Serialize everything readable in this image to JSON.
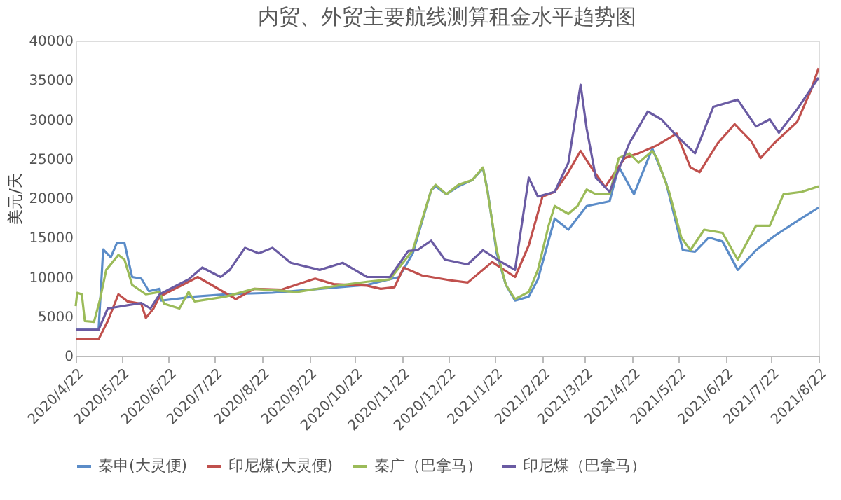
{
  "chart_data": {
    "type": "line",
    "title": "内贸、外贸主要航线测算租金水平趋势图",
    "ylabel": "美元/天",
    "xlim": [
      "2020-04-22",
      "2021-08-22"
    ],
    "xticks": [
      {
        "value": "2020-04-22",
        "label": "2020/4/22"
      },
      {
        "value": "2020-05-22",
        "label": "2020/5/22"
      },
      {
        "value": "2020-06-22",
        "label": "2020/6/22"
      },
      {
        "value": "2020-07-22",
        "label": "2020/7/22"
      },
      {
        "value": "2020-08-22",
        "label": "2020/8/22"
      },
      {
        "value": "2020-09-22",
        "label": "2020/9/22"
      },
      {
        "value": "2020-10-22",
        "label": "2020/10/22"
      },
      {
        "value": "2020-11-22",
        "label": "2020/11/22"
      },
      {
        "value": "2020-12-22",
        "label": "2020/12/22"
      },
      {
        "value": "2021-01-22",
        "label": "2021/1/22"
      },
      {
        "value": "2021-02-22",
        "label": "2021/2/22"
      },
      {
        "value": "2021-03-22",
        "label": "2021/3/22"
      },
      {
        "value": "2021-04-22",
        "label": "2021/4/22"
      },
      {
        "value": "2021-05-22",
        "label": "2021/5/22"
      },
      {
        "value": "2021-06-22",
        "label": "2021/6/22"
      },
      {
        "value": "2021-07-22",
        "label": "2021/7/22"
      },
      {
        "value": "2021-08-22",
        "label": "2021/8/22"
      }
    ],
    "ylim": [
      0,
      40000
    ],
    "yticks": [
      0,
      5000,
      10000,
      15000,
      20000,
      25000,
      30000,
      35000,
      40000
    ],
    "grid": false,
    "legend": "bottom",
    "marker": "none",
    "line_style": "solid",
    "series": [
      {
        "name": "秦申(大灵便)",
        "color": "#5b8cc8",
        "x": [
          "2020-04-22",
          "2020-05-07",
          "2020-05-10",
          "2020-05-15",
          "2020-05-19",
          "2020-05-24",
          "2020-05-29",
          "2020-06-04",
          "2020-06-09",
          "2020-06-16",
          "2020-06-17",
          "2020-07-08",
          "2020-07-29",
          "2020-08-29",
          "2020-09-29",
          "2020-10-30",
          "2020-11-20",
          "2020-11-29",
          "2020-12-11",
          "2020-12-14",
          "2020-12-21",
          "2020-12-29",
          "2021-01-07",
          "2021-01-14",
          "2021-01-17",
          "2021-01-23",
          "2021-01-29",
          "2021-02-04",
          "2021-02-13",
          "2021-02-19",
          "2021-03-02",
          "2021-03-11",
          "2021-03-23",
          "2021-04-07",
          "2021-04-13",
          "2021-04-23",
          "2021-05-05",
          "2021-05-14",
          "2021-05-25",
          "2021-06-02",
          "2021-06-11",
          "2021-06-20",
          "2021-06-30",
          "2021-07-12",
          "2021-07-24",
          "2021-08-08",
          "2021-08-22"
        ],
        "values": [
          3300,
          3300,
          13500,
          12500,
          14300,
          14300,
          10000,
          9800,
          8200,
          8500,
          7000,
          7500,
          7800,
          8000,
          8500,
          9000,
          10000,
          13000,
          21000,
          21500,
          20500,
          21500,
          22300,
          23800,
          21000,
          13000,
          9000,
          7000,
          7500,
          9700,
          17400,
          16000,
          19000,
          19600,
          24000,
          20500,
          26300,
          22000,
          13400,
          13200,
          15000,
          14500,
          10900,
          13400,
          15200,
          17100,
          18800
        ]
      },
      {
        "name": "印尼煤(大灵便)",
        "color": "#c0504d",
        "x": [
          "2020-04-22",
          "2020-05-07",
          "2020-05-13",
          "2020-05-20",
          "2020-05-26",
          "2020-06-04",
          "2020-06-07",
          "2020-06-12",
          "2020-06-16",
          "2020-06-29",
          "2020-07-11",
          "2020-07-20",
          "2020-08-05",
          "2020-08-17",
          "2020-09-04",
          "2020-09-26",
          "2020-10-08",
          "2020-10-30",
          "2020-11-08",
          "2020-11-17",
          "2020-11-23",
          "2020-12-05",
          "2020-12-23",
          "2021-01-04",
          "2021-01-20",
          "2021-02-04",
          "2021-02-13",
          "2021-02-22",
          "2021-03-02",
          "2021-03-11",
          "2021-03-19",
          "2021-03-26",
          "2021-04-04",
          "2021-04-17",
          "2021-04-26",
          "2021-05-08",
          "2021-05-21",
          "2021-05-30",
          "2021-06-05",
          "2021-06-17",
          "2021-06-28",
          "2021-07-09",
          "2021-07-15",
          "2021-07-24",
          "2021-08-08",
          "2021-08-17",
          "2021-08-22"
        ],
        "values": [
          2100,
          2100,
          4400,
          7800,
          6900,
          6600,
          4800,
          6000,
          7500,
          8800,
          10000,
          9000,
          7200,
          8500,
          8400,
          9800,
          9100,
          8900,
          8500,
          8700,
          11200,
          10200,
          9600,
          9300,
          11900,
          10000,
          14000,
          20200,
          20800,
          23300,
          26000,
          23900,
          21400,
          25100,
          25700,
          26700,
          28200,
          23900,
          23300,
          27000,
          29400,
          27200,
          25100,
          27000,
          29700,
          33700,
          36500
        ]
      },
      {
        "name": "秦广（巴拿马）",
        "color": "#9bbb59",
        "x": [
          "2020-04-22",
          "2020-04-23",
          "2020-04-26",
          "2020-04-28",
          "2020-05-04",
          "2020-05-08",
          "2020-05-12",
          "2020-05-20",
          "2020-05-24",
          "2020-05-29",
          "2020-06-07",
          "2020-06-16",
          "2020-06-19",
          "2020-06-29",
          "2020-07-05",
          "2020-07-09",
          "2020-07-29",
          "2020-08-17",
          "2020-09-14",
          "2020-10-14",
          "2020-10-30",
          "2020-11-14",
          "2020-11-29",
          "2020-12-11",
          "2020-12-14",
          "2020-12-21",
          "2020-12-29",
          "2021-01-07",
          "2021-01-14",
          "2021-01-17",
          "2021-01-23",
          "2021-01-29",
          "2021-02-04",
          "2021-02-13",
          "2021-02-19",
          "2021-02-26",
          "2021-03-02",
          "2021-03-11",
          "2021-03-17",
          "2021-03-23",
          "2021-03-29",
          "2021-04-07",
          "2021-04-13",
          "2021-04-20",
          "2021-04-26",
          "2021-05-05",
          "2021-05-08",
          "2021-05-16",
          "2021-05-24",
          "2021-05-30",
          "2021-06-08",
          "2021-06-20",
          "2021-06-30",
          "2021-07-12",
          "2021-07-21",
          "2021-07-30",
          "2021-08-11",
          "2021-08-22"
        ],
        "values": [
          6300,
          8000,
          7800,
          4400,
          4300,
          7200,
          10900,
          12800,
          12200,
          9000,
          7800,
          8100,
          6600,
          6000,
          8100,
          6900,
          7500,
          8500,
          8100,
          9000,
          9400,
          9700,
          13400,
          21000,
          21700,
          20500,
          21700,
          22300,
          23900,
          20800,
          13400,
          9000,
          7200,
          8100,
          10900,
          16500,
          19000,
          18000,
          19000,
          21100,
          20500,
          20500,
          25100,
          25700,
          24500,
          26000,
          25100,
          20800,
          15000,
          13400,
          16000,
          15600,
          12200,
          16500,
          16500,
          20500,
          20800,
          21500
        ]
      },
      {
        "name": "印尼煤（巴拿马）",
        "color": "#6a5ba3",
        "x": [
          "2020-04-22",
          "2020-05-07",
          "2020-05-13",
          "2020-06-04",
          "2020-06-10",
          "2020-06-16",
          "2020-07-05",
          "2020-07-14",
          "2020-07-26",
          "2020-08-01",
          "2020-08-11",
          "2020-08-20",
          "2020-08-29",
          "2020-09-10",
          "2020-09-29",
          "2020-10-14",
          "2020-10-30",
          "2020-11-14",
          "2020-11-26",
          "2020-12-02",
          "2020-12-11",
          "2020-12-20",
          "2021-01-04",
          "2021-01-14",
          "2021-01-26",
          "2021-02-04",
          "2021-02-13",
          "2021-02-19",
          "2021-03-02",
          "2021-03-11",
          "2021-03-19",
          "2021-03-23",
          "2021-03-29",
          "2021-04-07",
          "2021-04-20",
          "2021-05-02",
          "2021-05-11",
          "2021-05-21",
          "2021-06-02",
          "2021-06-14",
          "2021-06-30",
          "2021-07-12",
          "2021-07-21",
          "2021-07-27",
          "2021-08-08",
          "2021-08-22"
        ],
        "values": [
          3300,
          3300,
          6000,
          6700,
          6000,
          7800,
          9700,
          11200,
          10000,
          10900,
          13700,
          13000,
          13700,
          11800,
          10900,
          11800,
          10000,
          10000,
          13300,
          13400,
          14600,
          12200,
          11600,
          13400,
          11900,
          10900,
          22600,
          20200,
          20800,
          24500,
          34400,
          28800,
          22600,
          20800,
          27000,
          31000,
          30000,
          27900,
          25700,
          31600,
          32500,
          29100,
          30000,
          28300,
          31300,
          35300
        ]
      }
    ]
  }
}
